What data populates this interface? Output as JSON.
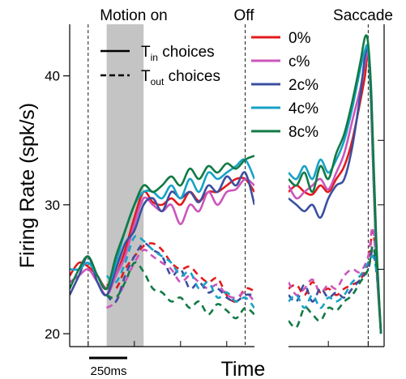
{
  "chart_data": {
    "type": "line",
    "ylabel": "Firing Rate (spk/s)",
    "xlabel": "Time",
    "ylim": [
      19,
      44
    ],
    "yticks": [
      20,
      30,
      40
    ],
    "grid": false,
    "legend_position": "top-right",
    "events": {
      "motion_on": "Motion on",
      "off": "Off",
      "saccade": "Saccade"
    },
    "scale_bar": {
      "label": "250ms",
      "duration_ms": 250
    },
    "style_legend": [
      {
        "style": "solid",
        "text": "T",
        "sub": "in",
        "suffix": " choices"
      },
      {
        "style": "dashed",
        "text": "T",
        "sub": "out",
        "suffix": " choices"
      }
    ],
    "panels": [
      {
        "name": "motion-aligned",
        "xlim_ms": [
          -100,
          900
        ],
        "shaded_ms": [
          100,
          300
        ],
        "event_lines_ms": [
          0,
          850
        ]
      },
      {
        "name": "saccade-aligned",
        "xlim_ms": [
          -500,
          100
        ],
        "event_lines_ms": [
          0
        ]
      }
    ],
    "series": [
      {
        "name": "0%",
        "color": "#e31a1c",
        "motion_tin_t": [
          -100,
          -50,
          0,
          50,
          100,
          150,
          200,
          250,
          300,
          350,
          400,
          450,
          500,
          550,
          600,
          650,
          700,
          750,
          800,
          850,
          900
        ],
        "motion_tin": [
          24.5,
          25.5,
          25.2,
          24.5,
          23.5,
          24.5,
          26.5,
          29,
          31,
          30.2,
          30,
          30.5,
          30,
          31,
          30.3,
          31,
          31,
          31.5,
          32,
          32,
          31
        ],
        "motion_tout_t": [
          100,
          150,
          200,
          250,
          300,
          350,
          400,
          450,
          500,
          550,
          600,
          650,
          700,
          750,
          800,
          850,
          900
        ],
        "motion_tout": [
          23.8,
          23.5,
          25,
          26,
          26.8,
          27,
          26.5,
          25.5,
          25,
          25.2,
          24.5,
          24,
          24.3,
          23,
          22.5,
          23.5,
          23.3
        ],
        "sacc_tin_t": [
          -500,
          -450,
          -400,
          -350,
          -300,
          -250,
          -200,
          -150,
          -100,
          -50,
          -20,
          0,
          20,
          50,
          80
        ],
        "sacc_tin": [
          31,
          31.5,
          31,
          30.8,
          31.5,
          31,
          32,
          33,
          35,
          38,
          40,
          41.8,
          37,
          26,
          20
        ],
        "sacc_tout_t": [
          -500,
          -450,
          -400,
          -350,
          -300,
          -250,
          -200,
          -150,
          -100,
          -50,
          0,
          30,
          60
        ],
        "sacc_tout": [
          23.5,
          23.8,
          23,
          24,
          23.2,
          23.5,
          23,
          23.5,
          23.8,
          24.2,
          25.5,
          28,
          24
        ]
      },
      {
        "name": "c%",
        "color": "#cc55bb",
        "motion_tin_t": [
          -100,
          -50,
          0,
          50,
          100,
          150,
          200,
          250,
          300,
          350,
          400,
          450,
          500,
          550,
          600,
          650,
          700,
          750,
          800,
          850,
          900
        ],
        "motion_tin": [
          24,
          24.5,
          25,
          24,
          23,
          24.5,
          26,
          28.5,
          30.5,
          30,
          29.5,
          30,
          28.5,
          30,
          29.5,
          31,
          30,
          31,
          31.2,
          32,
          31.5
        ],
        "motion_tout_t": [
          100,
          150,
          200,
          250,
          300,
          350,
          400,
          450,
          500,
          550,
          600,
          650,
          700,
          750,
          800,
          850,
          900
        ],
        "motion_tout": [
          22,
          22.5,
          24,
          25.5,
          26.5,
          26,
          25.5,
          25,
          24,
          24.5,
          24,
          23.5,
          23.8,
          23,
          22.8,
          23.2,
          22.5
        ],
        "sacc_tin_t": [
          -500,
          -450,
          -400,
          -350,
          -300,
          -250,
          -200,
          -150,
          -100,
          -50,
          -20,
          0,
          20,
          50,
          80
        ],
        "sacc_tin": [
          31.5,
          30.5,
          31,
          31.5,
          32,
          31.2,
          32.5,
          34,
          36.5,
          39,
          41,
          41.8,
          38,
          27,
          20
        ],
        "sacc_tout_t": [
          -500,
          -450,
          -400,
          -350,
          -300,
          -250,
          -200,
          -150,
          -100,
          -50,
          0,
          30,
          60
        ],
        "sacc_tout": [
          24,
          23,
          23.5,
          24.2,
          23.2,
          23.8,
          23.5,
          24.5,
          25,
          24.8,
          26,
          28.2,
          23.5
        ]
      },
      {
        "name": "2c%",
        "color": "#3b4fa0",
        "motion_tin_t": [
          -100,
          -50,
          0,
          50,
          100,
          150,
          200,
          250,
          300,
          350,
          400,
          450,
          500,
          550,
          600,
          650,
          700,
          750,
          800,
          850,
          900
        ],
        "motion_tin": [
          23,
          24.5,
          26,
          24,
          23,
          25,
          27,
          28,
          30,
          30.5,
          29.5,
          31,
          30.5,
          31,
          30.2,
          31.5,
          31,
          32.2,
          31.5,
          32.5,
          30
        ],
        "motion_tout_t": [
          100,
          150,
          200,
          250,
          300,
          350,
          400,
          450,
          500,
          550,
          600,
          650,
          700,
          750,
          800,
          850,
          900
        ],
        "motion_tout": [
          23,
          22.5,
          24.5,
          26,
          27,
          26.5,
          26,
          24.5,
          25,
          23.5,
          24,
          23.2,
          23.5,
          22.8,
          22.5,
          23,
          23
        ],
        "sacc_tin_t": [
          -500,
          -450,
          -400,
          -350,
          -300,
          -250,
          -200,
          -150,
          -100,
          -50,
          -20,
          0,
          20,
          50,
          80
        ],
        "sacc_tin": [
          30.5,
          30,
          29.5,
          30,
          29,
          30.5,
          31.5,
          32,
          34.5,
          38.5,
          41.5,
          42,
          38,
          27,
          20
        ],
        "sacc_tout_t": [
          -500,
          -450,
          -400,
          -350,
          -300,
          -250,
          -200,
          -150,
          -100,
          -50,
          0,
          30,
          60
        ],
        "sacc_tout": [
          23,
          22.5,
          23.8,
          22.5,
          23.5,
          22.8,
          23.2,
          22.8,
          23.5,
          24.2,
          25,
          26.5,
          24
        ]
      },
      {
        "name": "4c%",
        "color": "#17a2c6",
        "motion_tin_t": [
          -100,
          -50,
          0,
          50,
          100,
          150,
          200,
          250,
          300,
          350,
          400,
          450,
          500,
          550,
          600,
          650,
          700,
          750,
          800,
          850,
          900
        ],
        "motion_tin": [
          25,
          25,
          25.5,
          24.5,
          23.5,
          25.5,
          28,
          30,
          31,
          31,
          30.5,
          31.5,
          30.5,
          32,
          31,
          32.5,
          32,
          32.5,
          33,
          33.5,
          32
        ],
        "motion_tout_t": [
          100,
          150,
          200,
          250,
          300,
          350,
          400,
          450,
          500,
          550,
          600,
          650,
          700,
          750,
          800,
          850,
          900
        ],
        "motion_tout": [
          24.5,
          24,
          25.5,
          27.5,
          27.2,
          26.5,
          26,
          25.5,
          24.5,
          24.8,
          23.5,
          24,
          22.8,
          23.2,
          22.5,
          22.8,
          22
        ],
        "sacc_tin_t": [
          -500,
          -450,
          -400,
          -350,
          -300,
          -250,
          -200,
          -150,
          -100,
          -50,
          -20,
          0,
          20,
          50,
          80
        ],
        "sacc_tin": [
          32.5,
          32,
          33,
          32,
          33.5,
          32.5,
          33.5,
          35,
          37.5,
          40.5,
          42,
          42,
          37.5,
          26.5,
          20
        ],
        "sacc_tout_t": [
          -500,
          -450,
          -400,
          -350,
          -300,
          -250,
          -200,
          -150,
          -100,
          -50,
          0,
          30,
          60
        ],
        "sacc_tout": [
          22.5,
          23,
          22,
          23,
          22,
          22.8,
          22.5,
          23,
          24,
          24.5,
          25.5,
          26,
          24.5
        ]
      },
      {
        "name": "8c%",
        "color": "#117a45",
        "motion_tin_t": [
          -100,
          -50,
          0,
          50,
          100,
          150,
          200,
          250,
          300,
          350,
          400,
          450,
          500,
          550,
          600,
          650,
          700,
          750,
          800,
          850,
          900
        ],
        "motion_tin": [
          23.5,
          25,
          26,
          24.5,
          23.5,
          26,
          28,
          30,
          31.5,
          31,
          31.5,
          32.2,
          31.5,
          32.8,
          32,
          33,
          32.5,
          33.2,
          32.8,
          33.5,
          33.8
        ],
        "motion_tout_t": [
          100,
          150,
          200,
          250,
          300,
          350,
          400,
          450,
          500,
          550,
          600,
          650,
          700,
          750,
          800,
          850,
          900
        ],
        "motion_tout": [
          23,
          22.8,
          24,
          25.5,
          24.8,
          23.5,
          23.2,
          22.5,
          22.8,
          22,
          22.5,
          21.5,
          22.3,
          21.8,
          21.2,
          22,
          21.5
        ],
        "sacc_tin_t": [
          -500,
          -450,
          -400,
          -350,
          -300,
          -250,
          -200,
          -150,
          -100,
          -50,
          -20,
          0,
          20,
          50,
          80
        ],
        "sacc_tin": [
          32,
          31.5,
          32.5,
          31,
          33,
          32,
          34,
          35.5,
          38,
          41,
          43,
          42.5,
          38.5,
          27.5,
          20
        ],
        "sacc_tout_t": [
          -500,
          -450,
          -400,
          -350,
          -300,
          -250,
          -200,
          -150,
          -100,
          -50,
          0,
          30,
          60
        ],
        "sacc_tout": [
          21,
          20.5,
          22,
          21.5,
          21,
          22,
          21.8,
          22.5,
          23,
          24,
          25,
          26.8,
          24.5
        ]
      }
    ]
  }
}
